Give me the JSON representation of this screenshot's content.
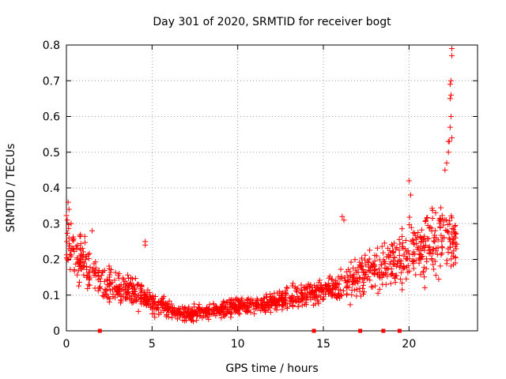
{
  "chart_data": {
    "type": "scatter",
    "title": "Day 301 of 2020, SRMTID for receiver bogt",
    "xlabel": "GPS time / hours",
    "ylabel": "SRMTID / TECUs",
    "xlim": [
      0,
      24
    ],
    "ylim": [
      0,
      0.8
    ],
    "xticks": [
      0,
      5,
      10,
      15,
      20
    ],
    "yticks": [
      0,
      0.1,
      0.2,
      0.3,
      0.4,
      0.5,
      0.6,
      0.7,
      0.8
    ],
    "grid": true,
    "marker": "plus",
    "color": "#ff0000",
    "baseline_markers_x": [
      1.95,
      14.45,
      17.15,
      18.5,
      19.45
    ],
    "envelope": [
      {
        "x": 0.0,
        "y": 0.25,
        "spread": 0.07
      },
      {
        "x": 1.0,
        "y": 0.2,
        "spread": 0.06
      },
      {
        "x": 2.0,
        "y": 0.14,
        "spread": 0.05
      },
      {
        "x": 3.0,
        "y": 0.12,
        "spread": 0.04
      },
      {
        "x": 4.0,
        "y": 0.11,
        "spread": 0.04
      },
      {
        "x": 5.0,
        "y": 0.08,
        "spread": 0.03
      },
      {
        "x": 6.0,
        "y": 0.06,
        "spread": 0.02
      },
      {
        "x": 7.0,
        "y": 0.05,
        "spread": 0.02
      },
      {
        "x": 8.0,
        "y": 0.05,
        "spread": 0.02
      },
      {
        "x": 9.0,
        "y": 0.06,
        "spread": 0.02
      },
      {
        "x": 10.0,
        "y": 0.07,
        "spread": 0.02
      },
      {
        "x": 11.0,
        "y": 0.07,
        "spread": 0.02
      },
      {
        "x": 12.0,
        "y": 0.08,
        "spread": 0.02
      },
      {
        "x": 13.0,
        "y": 0.09,
        "spread": 0.03
      },
      {
        "x": 14.0,
        "y": 0.1,
        "spread": 0.03
      },
      {
        "x": 15.0,
        "y": 0.11,
        "spread": 0.03
      },
      {
        "x": 16.0,
        "y": 0.13,
        "spread": 0.04
      },
      {
        "x": 17.0,
        "y": 0.15,
        "spread": 0.05
      },
      {
        "x": 18.0,
        "y": 0.17,
        "spread": 0.05
      },
      {
        "x": 19.0,
        "y": 0.19,
        "spread": 0.06
      },
      {
        "x": 20.0,
        "y": 0.22,
        "spread": 0.07
      },
      {
        "x": 21.0,
        "y": 0.23,
        "spread": 0.08
      },
      {
        "x": 22.0,
        "y": 0.27,
        "spread": 0.09
      },
      {
        "x": 22.8,
        "y": 0.26,
        "spread": 0.06
      }
    ],
    "highlighted_points": [
      {
        "x": 0.1,
        "y": 0.36
      },
      {
        "x": 0.15,
        "y": 0.34
      },
      {
        "x": 0.05,
        "y": 0.31
      },
      {
        "x": 1.5,
        "y": 0.28
      },
      {
        "x": 4.6,
        "y": 0.25
      },
      {
        "x": 4.6,
        "y": 0.24
      },
      {
        "x": 16.1,
        "y": 0.32
      },
      {
        "x": 16.2,
        "y": 0.31
      },
      {
        "x": 20.0,
        "y": 0.42
      },
      {
        "x": 20.1,
        "y": 0.38
      },
      {
        "x": 22.1,
        "y": 0.45
      },
      {
        "x": 22.2,
        "y": 0.47
      },
      {
        "x": 22.3,
        "y": 0.5
      },
      {
        "x": 22.35,
        "y": 0.53
      },
      {
        "x": 22.4,
        "y": 0.57
      },
      {
        "x": 22.45,
        "y": 0.6
      },
      {
        "x": 22.4,
        "y": 0.65
      },
      {
        "x": 22.45,
        "y": 0.66
      },
      {
        "x": 22.4,
        "y": 0.69
      },
      {
        "x": 22.45,
        "y": 0.7
      },
      {
        "x": 22.5,
        "y": 0.77
      },
      {
        "x": 22.5,
        "y": 0.79
      },
      {
        "x": 22.3,
        "y": 0.53
      },
      {
        "x": 22.5,
        "y": 0.54
      }
    ]
  }
}
